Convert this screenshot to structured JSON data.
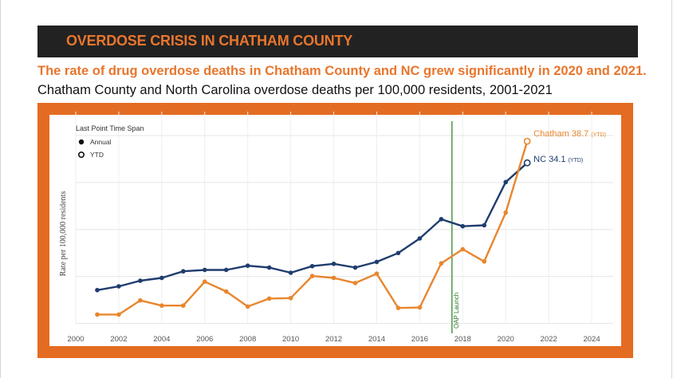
{
  "header": {
    "banner_title": "OVERDOSE CRISIS IN CHATHAM COUNTY",
    "headline": "The rate of drug overdose deaths in Chatham County and NC grew significantly in 2020 and 2021.",
    "subhead": "Chatham County and North Carolina overdose deaths per 100,000 residents, 2001-2021"
  },
  "colors": {
    "accent": "#e36c22",
    "banner_bg": "#222222",
    "nc_line": "#1f3d6e",
    "chatham_line": "#e8862e",
    "launch_line": "#2e8b2e"
  },
  "chart_data": {
    "type": "line",
    "ylabel": "Rate per 100,000 residents",
    "xlim": [
      2000,
      2025
    ],
    "ylim": [
      0,
      45
    ],
    "x_ticks": [
      "2000",
      "2002",
      "2004",
      "2006",
      "2008",
      "2010",
      "2012",
      "2014",
      "2016",
      "2018",
      "2020",
      "2022",
      "2024"
    ],
    "grid": true,
    "legend": {
      "title": "Last Point Time Span",
      "items": [
        {
          "label": "Annual",
          "marker": "filled-circle"
        },
        {
          "label": "YTD",
          "marker": "open-circle"
        }
      ],
      "placement": "top-left"
    },
    "series": [
      {
        "name": "NC",
        "color": "#1f3d6e",
        "x": [
          2001,
          2002,
          2003,
          2004,
          2005,
          2006,
          2007,
          2008,
          2009,
          2010,
          2011,
          2012,
          2013,
          2014,
          2015,
          2016,
          2017,
          2018,
          2019,
          2020,
          2021
        ],
        "y": [
          7.0,
          7.8,
          9.0,
          9.6,
          11.0,
          11.3,
          11.3,
          12.2,
          11.8,
          10.7,
          12.1,
          12.6,
          11.8,
          13.0,
          14.9,
          18.0,
          22.1,
          20.6,
          20.8,
          30.0,
          34.1
        ]
      },
      {
        "name": "Chatham",
        "color": "#e8862e",
        "x": [
          2001,
          2002,
          2003,
          2004,
          2005,
          2006,
          2007,
          2008,
          2009,
          2010,
          2011,
          2012,
          2013,
          2014,
          2015,
          2016,
          2017,
          2018,
          2019,
          2020,
          2021
        ],
        "y": [
          1.8,
          1.8,
          4.8,
          3.7,
          3.7,
          8.8,
          6.7,
          3.5,
          5.2,
          5.3,
          10.0,
          9.6,
          8.5,
          10.5,
          3.2,
          3.3,
          12.7,
          15.7,
          13.1,
          23.5,
          38.7
        ]
      }
    ],
    "end_labels": [
      {
        "series": "Chatham",
        "text": "Chatham 38.7",
        "suffix": "(YTD)"
      },
      {
        "series": "NC",
        "text": "NC 34.1",
        "suffix": "(YTD)"
      }
    ],
    "annotation": {
      "x": 2017.5,
      "label": "OAP Launch"
    }
  }
}
